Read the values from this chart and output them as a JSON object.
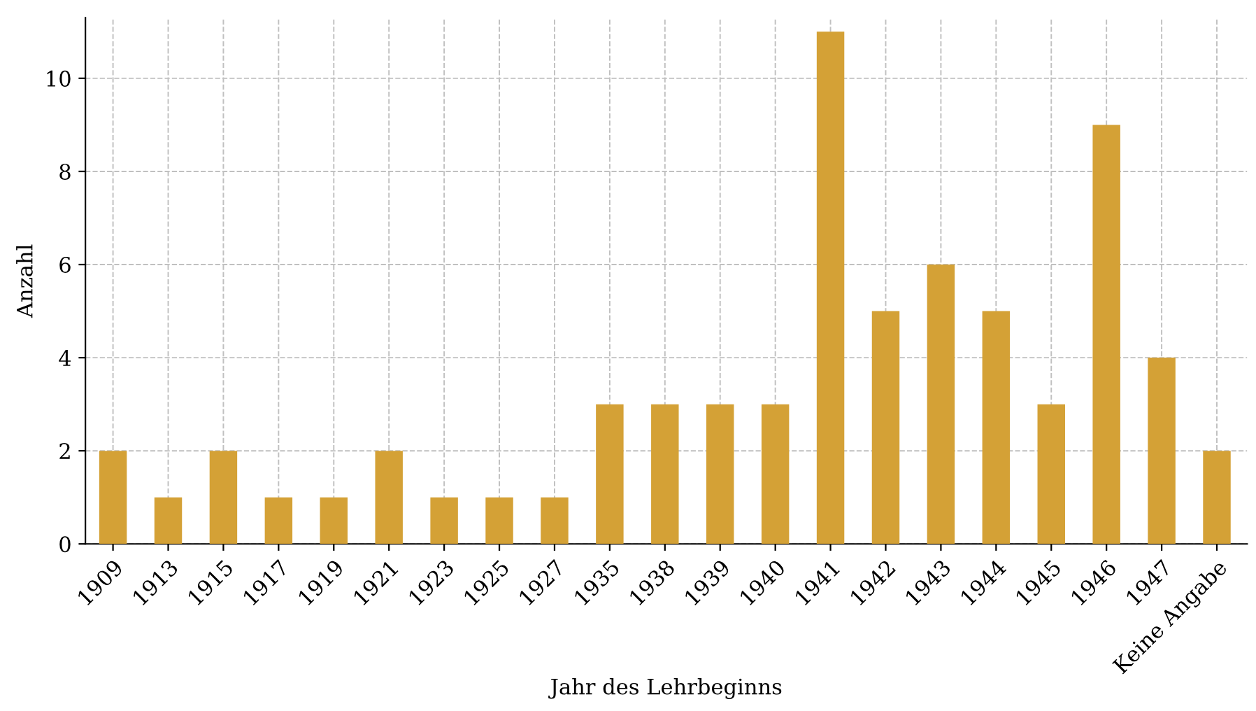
{
  "chart_data": {
    "type": "bar",
    "xlabel": "Jahr des Lehrbeginns",
    "ylabel": "Anzahl",
    "categories": [
      "1909",
      "1913",
      "1915",
      "1917",
      "1919",
      "1921",
      "1923",
      "1925",
      "1927",
      "1935",
      "1938",
      "1939",
      "1940",
      "1941",
      "1942",
      "1943",
      "1944",
      "1945",
      "1946",
      "1947",
      "Keine Angabe"
    ],
    "values": [
      2,
      1,
      2,
      1,
      1,
      2,
      1,
      1,
      1,
      3,
      3,
      3,
      3,
      11,
      5,
      6,
      5,
      3,
      9,
      4,
      2
    ],
    "color": "#d4a136",
    "ylim": [
      0,
      11.3
    ],
    "yticks": [
      0,
      2,
      4,
      6,
      8,
      10
    ],
    "grid": true
  }
}
